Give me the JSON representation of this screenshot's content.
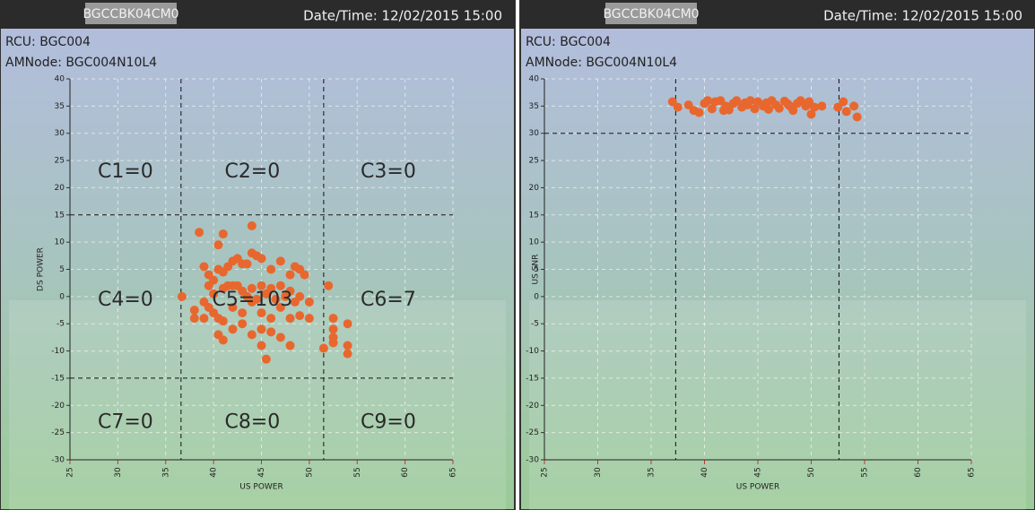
{
  "chart_data": [
    {
      "type": "scatter",
      "device": "BGCCBK04CM0",
      "datetime": "Date/Time: 12/02/2015 15:00",
      "rcu": "RCU: BGC004",
      "amnode": "AMNode: BGC004N10L4",
      "xlabel": "US POWER",
      "ylabel": "DS POWER",
      "color": "#e8672e",
      "grid": true,
      "xlim": [
        25,
        65
      ],
      "ylim": [
        -30,
        40
      ],
      "xticks": [
        25,
        30,
        35,
        40,
        45,
        50,
        55,
        60,
        65
      ],
      "yticks": [
        -30,
        -25,
        -20,
        -15,
        -10,
        -5,
        0,
        5,
        10,
        15,
        20,
        25,
        30,
        35,
        40
      ],
      "xlines": [
        36.6,
        51.5
      ],
      "ylines": [
        15,
        -15
      ],
      "regions": [
        "C1=0",
        "C2=0",
        "C3=0",
        "C4=0",
        "C5=103",
        "C6=7",
        "C7=0",
        "C8=0",
        "C9=0"
      ],
      "x": [
        38.5,
        40.5,
        41,
        44,
        36.7,
        39,
        39.5,
        40,
        40.5,
        41,
        41.5,
        42,
        42.5,
        43,
        43.5,
        44,
        44.5,
        45,
        46,
        47,
        48,
        48.5,
        49,
        49.5,
        39.5,
        40,
        41,
        41.5,
        42,
        42.5,
        43,
        44,
        45,
        46,
        47,
        48,
        49,
        50,
        52,
        39,
        39.5,
        40,
        40.5,
        41,
        42,
        43,
        44,
        45,
        46,
        47,
        48,
        49,
        50,
        39,
        40.5,
        41,
        42,
        43,
        44,
        45,
        46,
        47,
        45,
        45.5,
        48,
        51.5,
        52.5,
        52.5,
        52.5,
        52.5,
        54,
        54,
        54,
        43.5,
        44.5,
        45.5,
        46.5,
        47.5,
        48.5,
        38,
        38
      ],
      "values": [
        11.8,
        9.5,
        11.5,
        13,
        0,
        5.5,
        4,
        3,
        5,
        4.5,
        5.5,
        6.5,
        7,
        6,
        6,
        8,
        7.5,
        7,
        5,
        6.5,
        4,
        5.5,
        5,
        4,
        2,
        0.5,
        1.5,
        2,
        2,
        2,
        1,
        1.5,
        2,
        1.5,
        2,
        1,
        0,
        -1,
        2,
        -1,
        -2,
        -3,
        -4,
        -4.5,
        -2,
        -3,
        -1,
        -3,
        -4,
        -2,
        -4,
        -3.5,
        -4,
        -4,
        -7,
        -8,
        -6,
        -5,
        -7,
        -6,
        -6.5,
        -7.5,
        -9,
        -11.5,
        -9,
        -9.5,
        -4,
        -6,
        -7.5,
        -8.5,
        -5,
        -9,
        -10.5,
        0,
        -0.5,
        0.5,
        -0.5,
        0,
        -1,
        -2.5,
        -4
      ]
    },
    {
      "type": "scatter",
      "device": "BGCCBK04CM0",
      "datetime": "Date/Time: 12/02/2015 15:00",
      "rcu": "RCU: BGC004",
      "amnode": "AMNode: BGC004N10L4",
      "xlabel": "US POWER",
      "ylabel": "US SNR",
      "color": "#e8672e",
      "grid": true,
      "xlim": [
        25,
        65
      ],
      "ylim": [
        -30,
        40
      ],
      "xticks": [
        25,
        30,
        35,
        40,
        45,
        50,
        55,
        60,
        65
      ],
      "yticks": [
        -30,
        -25,
        -20,
        -15,
        -10,
        -5,
        0,
        5,
        10,
        15,
        20,
        25,
        30,
        35,
        40
      ],
      "xlines": [
        37.3,
        52.6
      ],
      "ylines": [
        30
      ],
      "x": [
        37,
        37.5,
        38.5,
        39,
        39.5,
        40,
        40.3,
        40.7,
        41,
        41.5,
        42,
        42.3,
        42.7,
        43,
        43.5,
        44,
        44.3,
        44.7,
        45,
        45.5,
        46,
        46.3,
        46.7,
        47,
        47.5,
        48,
        48.3,
        48.7,
        49,
        49.5,
        50,
        50.3,
        51,
        52.5,
        53,
        53.3,
        54,
        54.3,
        41.8,
        43.8,
        45.8,
        47.8,
        49.8
      ],
      "values": [
        35.8,
        34.8,
        35.2,
        34.2,
        33.8,
        35.5,
        36,
        34.5,
        35.8,
        36,
        35,
        34.3,
        35.5,
        36,
        34.8,
        35.2,
        36,
        34.5,
        35.8,
        35,
        34.4,
        36,
        35.2,
        34.6,
        35.9,
        35,
        34.2,
        35.5,
        36,
        35,
        33.5,
        34.8,
        35,
        34.8,
        35.8,
        34,
        35,
        33,
        34.2,
        35.6,
        35.6,
        35.4,
        35.8
      ]
    }
  ]
}
